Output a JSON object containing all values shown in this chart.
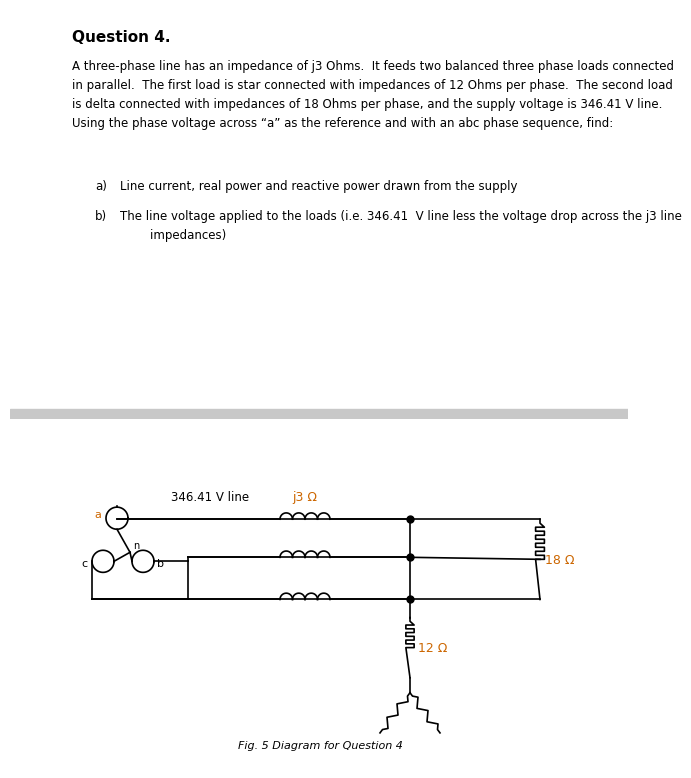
{
  "title": "Question 4.",
  "body_text": "A three-phase line has an impedance of j3 Ohms.  It feeds two balanced three phase loads connected\nin parallel.  The first load is star connected with impedances of 12 Ohms per phase.  The second load\nis delta connected with impedances of 18 Ohms per phase, and the supply voltage is 346.41 V line.\nUsing the phase voltage across “a” as the reference and with an abc phase sequence, find:",
  "item_a": "Line current, real power and reactive power drawn from the supply",
  "item_b": "The line voltage applied to the loads (i.e. 346.41  V line less the voltage drop across the j3 line\n        impedances)",
  "fig_caption": "Fig. 5 Diagram for Question 4",
  "label_voltage": "346.41 V line",
  "label_j3": "j3 Ω",
  "label_18": "18 Ω",
  "label_12": "12 Ω",
  "label_a": "a",
  "label_b": "b",
  "label_c": "c",
  "label_n": "n",
  "text_color": "#000000",
  "orange_color": "#cc6600",
  "bg_color": "#ffffff",
  "divider_color": "#c8c8c8",
  "title_fontsize": 11,
  "body_fontsize": 8.5,
  "fig_fontsize": 8
}
